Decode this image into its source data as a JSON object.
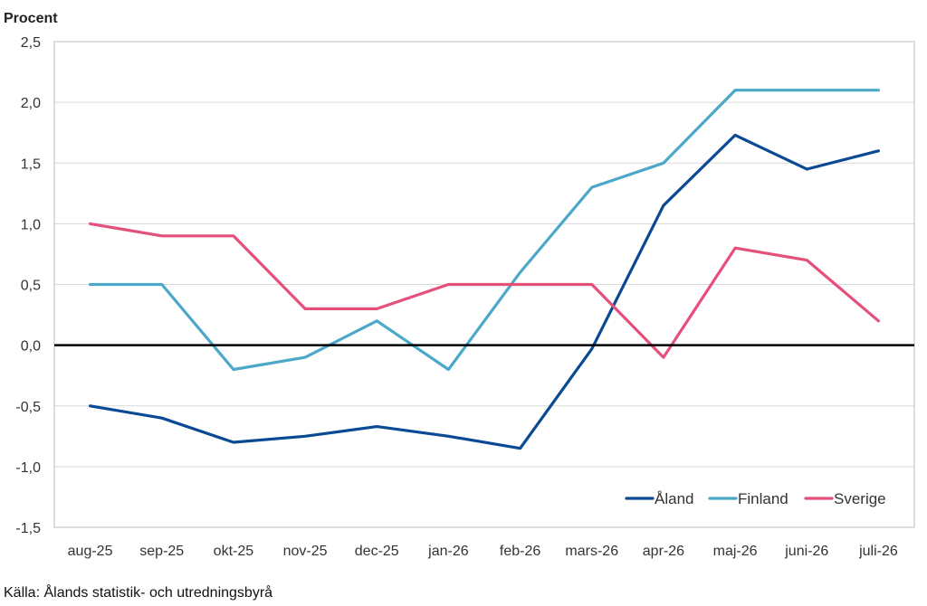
{
  "chart_data": {
    "type": "line",
    "ylabel": "Procent",
    "categories": [
      "aug-25",
      "sep-25",
      "okt-25",
      "nov-25",
      "dec-25",
      "jan-26",
      "feb-26",
      "mars-26",
      "apr-26",
      "maj-26",
      "juni-26",
      "juli-26"
    ],
    "ylim": [
      -1.5,
      2.5
    ],
    "yticks": [
      "2,5",
      "2,0",
      "1,5",
      "1,0",
      "0,5",
      "0,0",
      "-0,5",
      "-1,0",
      "-1,5"
    ],
    "ytick_values": [
      2.5,
      2.0,
      1.5,
      1.0,
      0.5,
      0.0,
      -0.5,
      -1.0,
      -1.5
    ],
    "grid": true,
    "legend_position": "bottom-right",
    "series": [
      {
        "name": "Åland",
        "color": "#0a4a94",
        "values": [
          -0.5,
          -0.6,
          -0.8,
          -0.75,
          -0.67,
          -0.75,
          -0.85,
          -0.03,
          1.15,
          1.73,
          1.45,
          1.6
        ]
      },
      {
        "name": "Finland",
        "color": "#4ba8c8",
        "values": [
          0.5,
          0.5,
          -0.2,
          -0.1,
          0.2,
          -0.2,
          0.6,
          1.3,
          1.5,
          2.1,
          2.1,
          2.1
        ]
      },
      {
        "name": "Sverige",
        "color": "#e5507a",
        "values": [
          1.0,
          0.9,
          0.9,
          0.3,
          0.3,
          0.5,
          0.5,
          0.5,
          -0.1,
          0.8,
          0.7,
          0.2
        ]
      }
    ]
  },
  "source": "Källa: Ålands statistik- och utredningsbyrå"
}
